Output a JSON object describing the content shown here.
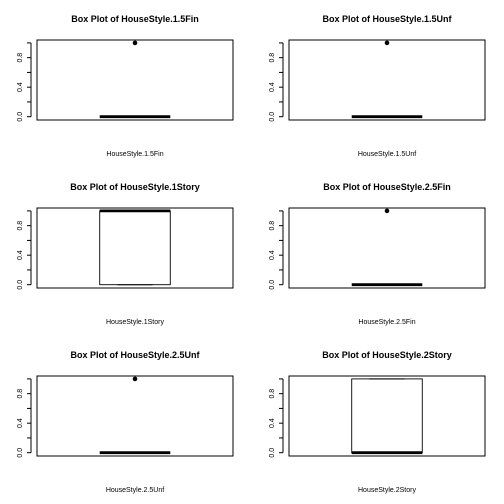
{
  "chart_data": [
    {
      "type": "boxplot",
      "title": "Box Plot of  HouseStyle.1.5Fin",
      "xlabel": "HouseStyle.1.5Fin",
      "ylabel": "",
      "ylim": [
        0,
        1
      ],
      "yticks": [
        "0.0",
        "0.4",
        "0.8"
      ],
      "box": {
        "min": 0,
        "q1": 0,
        "median": 0,
        "q3": 0,
        "max": 0
      },
      "outliers": [
        1
      ]
    },
    {
      "type": "boxplot",
      "title": "Box Plot of  HouseStyle.1.5Unf",
      "xlabel": "HouseStyle.1.5Unf",
      "ylabel": "",
      "ylim": [
        0,
        1
      ],
      "yticks": [
        "0.0",
        "0.4",
        "0.8"
      ],
      "box": {
        "min": 0,
        "q1": 0,
        "median": 0,
        "q3": 0,
        "max": 0
      },
      "outliers": [
        1
      ]
    },
    {
      "type": "boxplot",
      "title": "Box Plot of  HouseStyle.1Story",
      "xlabel": "HouseStyle.1Story",
      "ylabel": "",
      "ylim": [
        0,
        1
      ],
      "yticks": [
        "0.0",
        "0.4",
        "0.8"
      ],
      "box": {
        "min": 0,
        "q1": 0,
        "median": 1,
        "q3": 1,
        "max": 1
      },
      "outliers": []
    },
    {
      "type": "boxplot",
      "title": "Box Plot of  HouseStyle.2.5Fin",
      "xlabel": "HouseStyle.2.5Fin",
      "ylabel": "",
      "ylim": [
        0,
        1
      ],
      "yticks": [
        "0.0",
        "0.4",
        "0.8"
      ],
      "box": {
        "min": 0,
        "q1": 0,
        "median": 0,
        "q3": 0,
        "max": 0
      },
      "outliers": [
        1
      ]
    },
    {
      "type": "boxplot",
      "title": "Box Plot of  HouseStyle.2.5Unf",
      "xlabel": "HouseStyle.2.5Unf",
      "ylabel": "",
      "ylim": [
        0,
        1
      ],
      "yticks": [
        "0.0",
        "0.4",
        "0.8"
      ],
      "box": {
        "min": 0,
        "q1": 0,
        "median": 0,
        "q3": 0,
        "max": 0
      },
      "outliers": [
        1
      ]
    },
    {
      "type": "boxplot",
      "title": "Box Plot of  HouseStyle.2Story",
      "xlabel": "HouseStyle.2Story",
      "ylabel": "",
      "ylim": [
        0,
        1
      ],
      "yticks": [
        "0.0",
        "0.4",
        "0.8"
      ],
      "box": {
        "min": 0,
        "q1": 0,
        "median": 0,
        "q3": 1,
        "max": 1
      },
      "outliers": []
    }
  ]
}
